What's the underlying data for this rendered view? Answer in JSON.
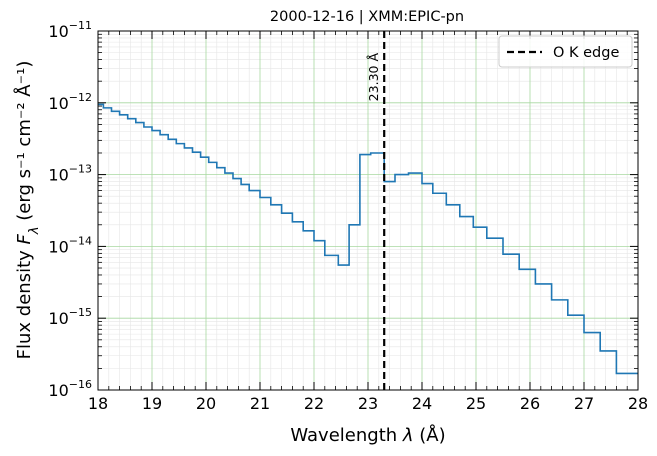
{
  "chart_data": {
    "type": "line",
    "title": "2000-12-16 | XMM:EPIC-pn",
    "xlabel_main": "Wavelength ",
    "xlabel_sym": "λ",
    "xlabel_unit": " (Å)",
    "ylabel_main": "Flux density ",
    "ylabel_sym": "F",
    "ylabel_sub": "λ",
    "ylabel_unit": " (erg s⁻¹ cm⁻² Å⁻¹)",
    "xlim": [
      18,
      28
    ],
    "ylim": [
      1e-16,
      1e-11
    ],
    "yscale": "log",
    "grid": true,
    "legend_position": "top-right",
    "x_ticks": [
      {
        "value": 18,
        "label": "18"
      },
      {
        "value": 19,
        "label": "19"
      },
      {
        "value": 20,
        "label": "20"
      },
      {
        "value": 21,
        "label": "21"
      },
      {
        "value": 22,
        "label": "22"
      },
      {
        "value": 23,
        "label": "23"
      },
      {
        "value": 24,
        "label": "24"
      },
      {
        "value": 25,
        "label": "25"
      },
      {
        "value": 26,
        "label": "26"
      },
      {
        "value": 27,
        "label": "27"
      },
      {
        "value": 28,
        "label": "28"
      }
    ],
    "y_ticks": [
      {
        "exp": -16,
        "base": "10",
        "sup": "−16"
      },
      {
        "exp": -15,
        "base": "10",
        "sup": "−15"
      },
      {
        "exp": -14,
        "base": "10",
        "sup": "−14"
      },
      {
        "exp": -13,
        "base": "10",
        "sup": "−13"
      },
      {
        "exp": -12,
        "base": "10",
        "sup": "−12"
      },
      {
        "exp": -11,
        "base": "10",
        "sup": "−11"
      }
    ],
    "series": [
      {
        "name": "",
        "color": "#1f77b4",
        "style": "step",
        "edges": [
          18.0,
          18.1,
          18.25,
          18.4,
          18.55,
          18.7,
          18.85,
          19.0,
          19.15,
          19.3,
          19.45,
          19.6,
          19.75,
          19.9,
          20.05,
          20.2,
          20.35,
          20.5,
          20.65,
          20.8,
          21.0,
          21.2,
          21.4,
          21.6,
          21.8,
          22.0,
          22.2,
          22.45,
          22.65,
          22.85,
          23.05,
          23.3,
          23.5,
          23.75,
          24.0,
          24.2,
          24.45,
          24.7,
          24.95,
          25.2,
          25.5,
          25.8,
          26.1,
          26.4,
          26.7,
          27.0,
          27.3,
          27.6,
          28.0
        ],
        "values": [
          9.5e-13,
          8.5e-13,
          7.6e-13,
          6.8e-13,
          6e-13,
          5.3e-13,
          4.6e-13,
          4.1e-13,
          3.6e-13,
          3.1e-13,
          2.7e-13,
          2.35e-13,
          2.05e-13,
          1.75e-13,
          1.48e-13,
          1.25e-13,
          1.05e-13,
          8.8e-14,
          7.3e-14,
          6e-14,
          4.8e-14,
          3.8e-14,
          2.9e-14,
          2.2e-14,
          1.65e-14,
          1.2e-14,
          7.5e-15,
          5.5e-15,
          2e-14,
          1.9e-13,
          2e-13,
          8e-14,
          1e-13,
          1.05e-13,
          7.5e-14,
          5.5e-14,
          3.8e-14,
          2.6e-14,
          1.85e-14,
          1.3e-14,
          7.8e-15,
          4.8e-15,
          3e-15,
          1.8e-15,
          1.1e-15,
          6.3e-16,
          3.5e-16,
          1.7e-16
        ]
      }
    ],
    "vline": {
      "x": 23.3,
      "label": "O K edge",
      "annotation": "23.30 Å",
      "color": "#000000",
      "style": "dashed"
    }
  }
}
